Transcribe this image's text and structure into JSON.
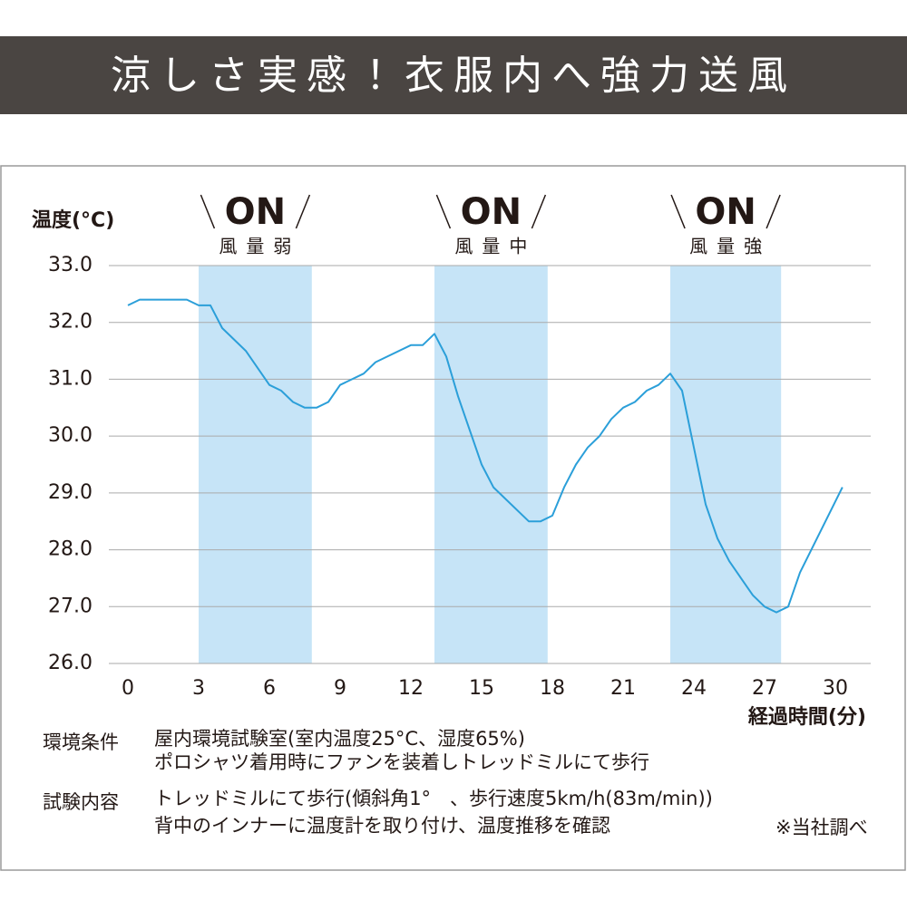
{
  "banner": {
    "title": "涼しさ実感！衣服内へ強力送風"
  },
  "chart_data": {
    "type": "line",
    "ylabel": "温度(°C)",
    "xlabel": "経過時間(分)",
    "x": [
      0,
      0.5,
      2.5,
      3,
      3.5,
      4,
      5,
      6,
      6.5,
      7,
      7.5,
      8,
      8.5,
      9,
      10,
      10.5,
      12,
      12.5,
      13,
      13.5,
      14,
      15,
      15.5,
      17,
      17.5,
      18,
      18.5,
      19,
      19.5,
      20,
      20.5,
      21,
      21.5,
      22,
      22.5,
      23,
      23.5,
      24,
      24.5,
      25,
      25.5,
      26,
      26.5,
      27,
      27.5,
      28,
      28.5,
      30.3
    ],
    "values": [
      32.3,
      32.4,
      32.4,
      32.3,
      32.3,
      31.9,
      31.5,
      30.9,
      30.8,
      30.6,
      30.5,
      30.5,
      30.6,
      30.9,
      31.1,
      31.3,
      31.6,
      31.6,
      31.8,
      31.4,
      30.7,
      29.5,
      29.1,
      28.5,
      28.5,
      28.6,
      29.1,
      29.5,
      29.8,
      30.0,
      30.3,
      30.5,
      30.6,
      30.8,
      30.9,
      31.1,
      30.8,
      29.8,
      28.8,
      28.2,
      27.8,
      27.5,
      27.2,
      27.0,
      26.9,
      27.0,
      27.6,
      29.1
    ],
    "color": "#2b9fd9",
    "xlim": [
      -0.1,
      31.5
    ],
    "ylim": [
      26,
      33
    ],
    "xticks": [
      0,
      3,
      6,
      9,
      12,
      15,
      18,
      21,
      24,
      27,
      30
    ],
    "yticks": [
      {
        "value": 26,
        "label": "26.0"
      },
      {
        "value": 27,
        "label": "27.0"
      },
      {
        "value": 28,
        "label": "28.0"
      },
      {
        "value": 29,
        "label": "29.0"
      },
      {
        "value": 30,
        "label": "30.0"
      },
      {
        "value": 31,
        "label": "31.0"
      },
      {
        "value": 32,
        "label": "32.0"
      },
      {
        "value": 33,
        "label": "33.0"
      }
    ],
    "grid": true,
    "regions": [
      {
        "xlim": [
          3,
          7.8
        ],
        "label": "ON",
        "sublabel": "風量弱",
        "color": "#c6e4f7"
      },
      {
        "xlim": [
          13,
          17.8
        ],
        "label": "ON",
        "sublabel": "風量中",
        "color": "#c6e4f7"
      },
      {
        "xlim": [
          23,
          27.7
        ],
        "label": "ON",
        "sublabel": "風量強",
        "color": "#c6e4f7"
      }
    ]
  },
  "notes": [
    {
      "label": "環境条件",
      "lines": [
        "屋内環境試験室(室内温度25°C、湿度65%)",
        "ポロシャツ着用時にファンを装着しトレッドミルにて歩行"
      ]
    },
    {
      "label": "試験内容",
      "lines": [
        "トレッドミルにて歩行(傾斜角1°　、歩行速度5km/h(83m/min))",
        "背中のインナーに温度計を取り付け、温度推移を確認"
      ]
    }
  ],
  "source": "※当社調べ"
}
